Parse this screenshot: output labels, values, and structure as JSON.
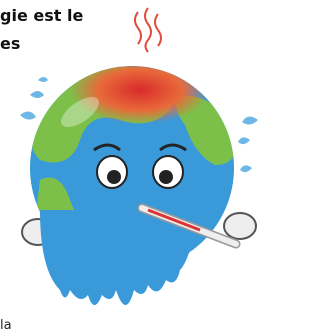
{
  "text": {
    "line1": "gie est le",
    "line2": "es",
    "footer": "la"
  }
}
